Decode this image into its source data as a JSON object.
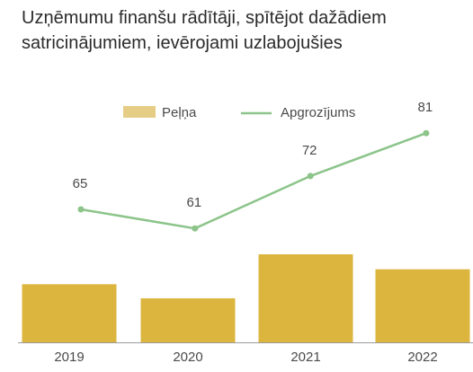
{
  "title": {
    "line1": "Uzņēmumu finanšu rādītāji, spītējot dažādiem",
    "line2": "satricinājumiem, ievērojami uzlabojušies"
  },
  "chart_data": {
    "type": "bar",
    "categories": [
      "2019",
      "2020",
      "2021",
      "2022"
    ],
    "series": [
      {
        "name": "Peļņa",
        "kind": "bar",
        "values": [
          66,
          50,
          100,
          83
        ],
        "color": "#dcb53f"
      },
      {
        "name": "Apgrozījums",
        "kind": "line",
        "values": [
          65,
          61,
          72,
          81
        ],
        "color": "#8cc48a"
      }
    ],
    "title": "Uzņēmumu finanšu rādītāji, spītējot dažādiem satricinājumiem, ievērojami uzlabojušies",
    "xlabel": "",
    "ylabel": "",
    "data_labels": [
      "65",
      "61",
      "72",
      "81"
    ],
    "grid": false,
    "legend_position": "top-center",
    "bar_color_legend": "#e6cd86"
  }
}
